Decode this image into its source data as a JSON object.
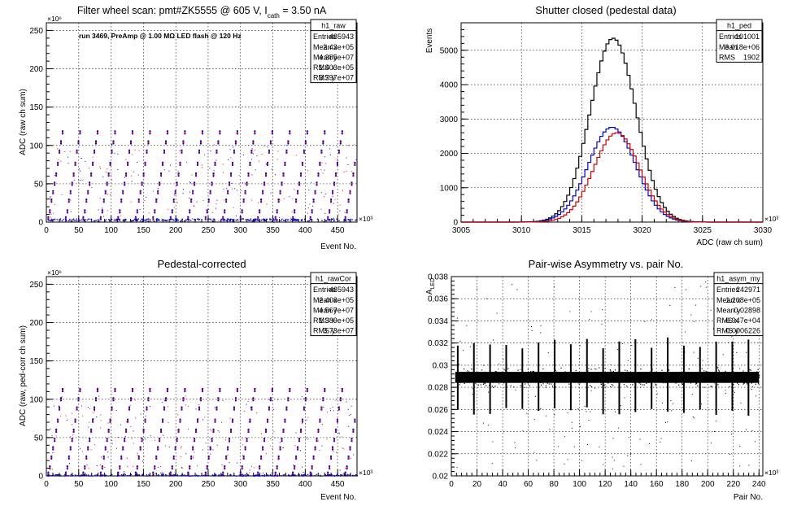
{
  "chart_data": [
    {
      "id": "p1",
      "type": "scatter",
      "title": "Filter wheel scan: pmt#ZK5555 @   605 V, I",
      "title_sub": "cath",
      "title_tail": " = 3.50 nA",
      "annotation": "run 3469, PreAmp @ 1.00 MΩ LED flash @  120 Hz",
      "xlabel": "Event No.",
      "ylabel": "ADC (raw ch sum)",
      "xlim": [
        0,
        480
      ],
      "ylim": [
        0,
        260
      ],
      "x_multiplier": "×10³",
      "y_multiplier": "×10⁶",
      "xticks": [
        0,
        50,
        100,
        150,
        200,
        250,
        300,
        350,
        400,
        450
      ],
      "yticks": [
        0,
        50,
        100,
        150,
        200,
        250
      ],
      "grid": true,
      "levels": [
        5,
        14,
        28,
        39,
        50,
        62,
        76,
        92,
        104,
        117
      ],
      "colors": [
        "#0000cc",
        "#ff0000"
      ],
      "stats": {
        "name": "h1_raw",
        "rows": [
          [
            "Entries",
            "485943"
          ],
          [
            "Mean x",
            "2.43e+05"
          ],
          [
            "Mean y",
            "4.385e+07"
          ],
          [
            "RMS x",
            "1.403e+05"
          ],
          [
            "RMS y",
            "3.797e+07"
          ]
        ]
      }
    },
    {
      "id": "p2",
      "type": "histogram",
      "title": "Shutter closed (pedestal data)",
      "xlabel": "ADC (raw ch sum)",
      "ylabel": "Events",
      "xlim": [
        3005,
        3030
      ],
      "ylim": [
        0,
        5800
      ],
      "x_multiplier": "×10³",
      "xticks": [
        3005,
        3010,
        3015,
        3020,
        3025,
        3030
      ],
      "yticks": [
        0,
        1000,
        2000,
        3000,
        4000,
        5000
      ],
      "grid": true,
      "series": [
        {
          "color": "#000000",
          "mean": 3017.6,
          "sigma": 1.9,
          "peak": 5350
        },
        {
          "color": "#0000cc",
          "mean": 3017.5,
          "sigma": 1.95,
          "peak": 2760
        },
        {
          "color": "#cc0000",
          "mean": 3017.9,
          "sigma": 1.9,
          "peak": 2600
        }
      ],
      "stats": {
        "name": "h1_ped",
        "rows": [
          [
            "Entries",
            "101001"
          ],
          [
            "Mean",
            "3.018e+06"
          ],
          [
            "RMS",
            "1902"
          ]
        ]
      }
    },
    {
      "id": "p3",
      "type": "scatter",
      "title": "Pedestal-corrected",
      "xlabel": "Event No.",
      "ylabel": "ADC (raw, ped-corr ch sum)",
      "xlim": [
        0,
        480
      ],
      "ylim": [
        0,
        260
      ],
      "x_multiplier": "×10³",
      "y_multiplier": "×10⁶",
      "xticks": [
        0,
        50,
        100,
        150,
        200,
        250,
        300,
        350,
        400,
        450
      ],
      "yticks": [
        0,
        50,
        100,
        150,
        200,
        250
      ],
      "grid": true,
      "levels": [
        3,
        11,
        24,
        36,
        47,
        59,
        72,
        88,
        100,
        112
      ],
      "colors": [
        "#0000cc",
        "#ff0000"
      ],
      "stats": {
        "name": "h1_rawCor",
        "rows": [
          [
            "Entries",
            "485943"
          ],
          [
            "Mean x",
            "2.408e+05"
          ],
          [
            "Mean y",
            "4.567e+07"
          ],
          [
            "RMS x",
            "1.389e+05"
          ],
          [
            "RMS y",
            "3.73e+07"
          ]
        ]
      }
    },
    {
      "id": "p4",
      "type": "scatter",
      "title": "Pair-wise Asymmetry vs. pair No.",
      "xlabel": "Pair No.",
      "ylabel": "A",
      "ylabel_sub": "LED",
      "xlim": [
        0,
        243
      ],
      "ylim": [
        0.02,
        0.038
      ],
      "x_multiplier": "×10³",
      "xticks": [
        0,
        20,
        40,
        60,
        80,
        100,
        120,
        140,
        160,
        180,
        200,
        220,
        240
      ],
      "yticks": [
        0.02,
        0.022,
        0.024,
        0.026,
        0.028,
        0.03,
        0.032,
        0.034,
        0.036,
        0.038
      ],
      "grid": true,
      "band_center": 0.0289,
      "band_halfwidth": 0.0005,
      "stats": {
        "name": "h1_asym_my",
        "rows": [
          [
            "Entries",
            "242971"
          ],
          [
            "Mean x",
            "1.208e+05"
          ],
          [
            "Mean y",
            "0.02898"
          ],
          [
            "RMS x",
            "6.947e+04"
          ],
          [
            "RMS y",
            "0.0006226"
          ]
        ]
      }
    }
  ]
}
